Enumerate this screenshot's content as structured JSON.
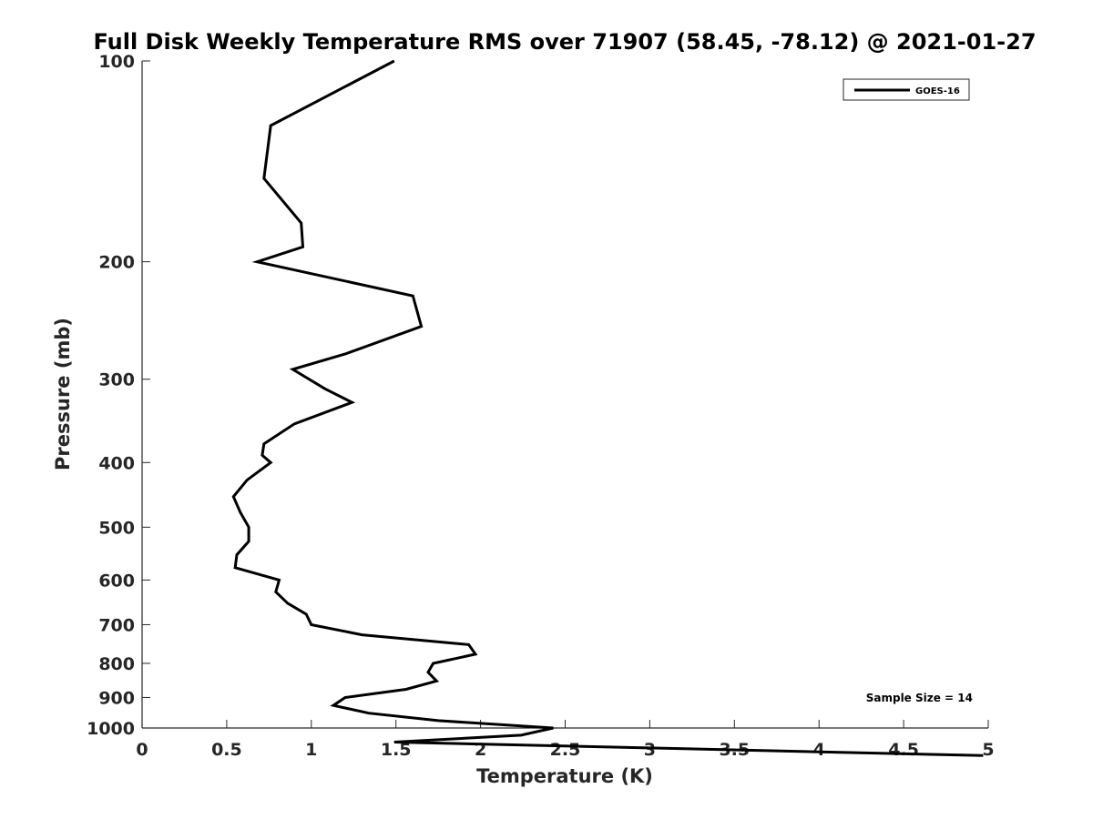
{
  "chart_data": {
    "type": "line",
    "title": "Full Disk Weekly Temperature RMS over 71907 (58.45, -78.12) @ 2021-01-27",
    "xlabel": "Temperature (K)",
    "ylabel": "Pressure (mb)",
    "xlim": [
      0,
      5
    ],
    "ylim": [
      100,
      1000
    ],
    "y_scale": "log",
    "y_reversed": true,
    "grid": false,
    "legend_position": "top-right",
    "x_ticks": [
      0,
      0.5,
      1,
      1.5,
      2,
      2.5,
      3,
      3.5,
      4,
      4.5,
      5
    ],
    "x_tick_labels": [
      "0",
      "0.5",
      "1",
      "1.5",
      "2",
      "2.5",
      "3",
      "3.5",
      "4",
      "4.5",
      "5"
    ],
    "y_ticks": [
      100,
      200,
      300,
      400,
      500,
      600,
      700,
      800,
      900,
      1000
    ],
    "y_tick_labels": [
      "100",
      "200",
      "300",
      "400",
      "500",
      "600",
      "700",
      "800",
      "900",
      "1000"
    ],
    "series": [
      {
        "name": "GOES-16",
        "color": "#000000",
        "points": [
          [
            1.49,
            100
          ],
          [
            0.76,
            125
          ],
          [
            0.72,
            150
          ],
          [
            0.94,
            175
          ],
          [
            0.95,
            190
          ],
          [
            0.68,
            200
          ],
          [
            1.6,
            225
          ],
          [
            1.65,
            250
          ],
          [
            1.2,
            275
          ],
          [
            0.89,
            290
          ],
          [
            1.08,
            310
          ],
          [
            1.24,
            325
          ],
          [
            0.9,
            350
          ],
          [
            0.72,
            375
          ],
          [
            0.71,
            390
          ],
          [
            0.76,
            400
          ],
          [
            0.62,
            425
          ],
          [
            0.54,
            450
          ],
          [
            0.58,
            475
          ],
          [
            0.63,
            500
          ],
          [
            0.63,
            525
          ],
          [
            0.56,
            550
          ],
          [
            0.55,
            575
          ],
          [
            0.81,
            600
          ],
          [
            0.79,
            625
          ],
          [
            0.86,
            650
          ],
          [
            0.97,
            675
          ],
          [
            1.0,
            700
          ],
          [
            1.3,
            725
          ],
          [
            1.93,
            750
          ],
          [
            1.97,
            775
          ],
          [
            1.72,
            800
          ],
          [
            1.69,
            825
          ],
          [
            1.74,
            850
          ],
          [
            1.56,
            875
          ],
          [
            1.2,
            900
          ],
          [
            1.13,
            925
          ],
          [
            1.34,
            950
          ],
          [
            1.75,
            975
          ],
          [
            2.43,
            1000
          ],
          [
            2.24,
            1025
          ],
          [
            1.49,
            1050
          ],
          [
            2.9,
            1070
          ],
          [
            4.97,
            1100
          ]
        ]
      }
    ],
    "legend_entries": [
      "GOES-16"
    ],
    "annotations": [
      {
        "text": "Sample Size = 14",
        "position": "bottom-right"
      }
    ]
  }
}
